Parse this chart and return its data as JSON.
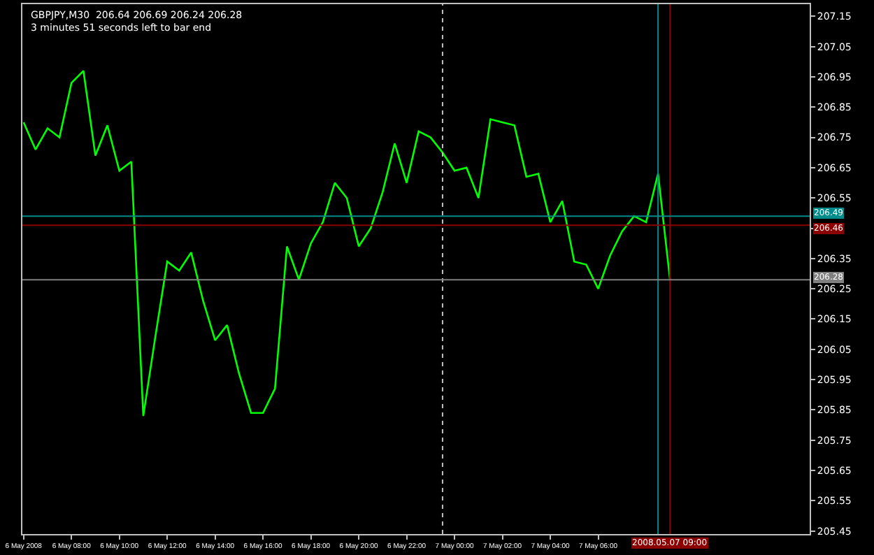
{
  "chart_data": {
    "type": "line",
    "title": "GBPJPY,M30  206.64 206.69 206.24 206.28",
    "subtitle": "3 minutes 51 seconds left to bar end",
    "x": [
      "2008-05-06T06:00",
      "2008-05-06T06:30",
      "2008-05-06T07:00",
      "2008-05-06T07:30",
      "2008-05-06T08:00",
      "2008-05-06T08:30",
      "2008-05-06T09:00",
      "2008-05-06T09:30",
      "2008-05-06T10:00",
      "2008-05-06T10:30",
      "2008-05-06T11:00",
      "2008-05-06T11:30",
      "2008-05-06T12:00",
      "2008-05-06T12:30",
      "2008-05-06T13:00",
      "2008-05-06T13:30",
      "2008-05-06T14:00",
      "2008-05-06T14:30",
      "2008-05-06T15:00",
      "2008-05-06T15:30",
      "2008-05-06T16:00",
      "2008-05-06T16:30",
      "2008-05-06T17:00",
      "2008-05-06T17:30",
      "2008-05-06T18:00",
      "2008-05-06T18:30",
      "2008-05-06T19:00",
      "2008-05-06T19:30",
      "2008-05-06T20:00",
      "2008-05-06T20:30",
      "2008-05-06T21:00",
      "2008-05-06T21:30",
      "2008-05-06T22:00",
      "2008-05-06T22:30",
      "2008-05-06T23:00",
      "2008-05-06T23:30",
      "2008-05-07T00:00",
      "2008-05-07T00:30",
      "2008-05-07T01:00",
      "2008-05-07T01:30",
      "2008-05-07T02:00",
      "2008-05-07T02:30",
      "2008-05-07T03:00",
      "2008-05-07T03:30",
      "2008-05-07T04:00",
      "2008-05-07T04:30",
      "2008-05-07T05:00",
      "2008-05-07T05:30",
      "2008-05-07T06:00",
      "2008-05-07T06:30",
      "2008-05-07T07:00",
      "2008-05-07T07:30",
      "2008-05-07T08:00",
      "2008-05-07T08:30",
      "2008-05-07T09:00"
    ],
    "series": [
      {
        "color": "#00ff00",
        "values": [
          206.8,
          206.71,
          206.78,
          206.75,
          206.93,
          206.97,
          206.69,
          206.79,
          206.64,
          206.67,
          205.83,
          206.09,
          206.34,
          206.31,
          206.37,
          206.21,
          206.08,
          206.13,
          205.97,
          205.84,
          205.84,
          205.92,
          206.39,
          206.28,
          206.4,
          206.47,
          206.6,
          206.55,
          206.39,
          206.45,
          206.57,
          206.73,
          206.6,
          206.77,
          206.75,
          206.7,
          206.64,
          206.65,
          206.55,
          206.81,
          206.8,
          206.79,
          206.62,
          206.63,
          206.47,
          206.54,
          206.34,
          206.33,
          206.25,
          206.36,
          206.44,
          206.49,
          206.47,
          206.63,
          206.28
        ]
      }
    ],
    "xlim": [
      "2008-05-06T05:57",
      "2008-05-07T14:50"
    ],
    "ylim": [
      205.44,
      207.19
    ],
    "xticks": [
      {
        "value": "2008-05-06T06:00",
        "label": "6 May 2008"
      },
      {
        "value": "2008-05-06T08:00",
        "label": "6 May 08:00"
      },
      {
        "value": "2008-05-06T10:00",
        "label": "6 May 10:00"
      },
      {
        "value": "2008-05-06T12:00",
        "label": "6 May 12:00"
      },
      {
        "value": "2008-05-06T14:00",
        "label": "6 May 14:00"
      },
      {
        "value": "2008-05-06T16:00",
        "label": "6 May 16:00"
      },
      {
        "value": "2008-05-06T18:00",
        "label": "6 May 18:00"
      },
      {
        "value": "2008-05-06T20:00",
        "label": "6 May 20:00"
      },
      {
        "value": "2008-05-06T22:00",
        "label": "6 May 22:00"
      },
      {
        "value": "2008-05-07T00:00",
        "label": "7 May 00:00"
      },
      {
        "value": "2008-05-07T02:00",
        "label": "7 May 02:00"
      },
      {
        "value": "2008-05-07T04:00",
        "label": "7 May 04:00"
      },
      {
        "value": "2008-05-07T06:00",
        "label": "7 May 06:00"
      }
    ],
    "yticks": [
      205.45,
      205.55,
      205.65,
      205.75,
      205.85,
      205.95,
      206.05,
      206.15,
      206.25,
      206.35,
      {
        "value": 206.45,
        "label": null
      },
      206.55,
      206.65,
      206.75,
      206.85,
      206.95,
      207.05,
      207.15
    ],
    "ref_lines": [
      {
        "axis": "x",
        "value": "2008-05-06T23:30",
        "color": "#c0c0c0",
        "line_style": "dotted"
      },
      {
        "axis": "x",
        "value": "2008-05-07T08:30",
        "color": "#008b8b"
      },
      {
        "axis": "x",
        "value": "2008-05-07T09:00",
        "color": "#8b0000",
        "label": "2008.05.07 09:00"
      },
      {
        "axis": "y",
        "value": 206.49,
        "color": "#008b8b",
        "label": "206.49"
      },
      {
        "axis": "y",
        "value": 206.46,
        "color": "#8b0000",
        "label": "206.46"
      },
      {
        "axis": "y",
        "value": 206.28,
        "color": "#808080",
        "label": "206.28"
      }
    ],
    "grid": false,
    "legend": false,
    "marker": "none",
    "line_style": "solid"
  }
}
